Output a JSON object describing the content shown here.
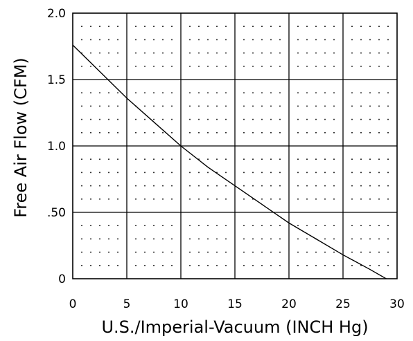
{
  "chart_data": {
    "type": "line",
    "title": "",
    "xlabel": "U.S./Imperial-Vacuum (INCH Hg)",
    "ylabel": "Free Air Flow (CFM)",
    "xlim": [
      0,
      30
    ],
    "ylim": [
      0,
      2.0
    ],
    "x_ticks": [
      0,
      5,
      10,
      15,
      20,
      25,
      30
    ],
    "x_tick_labels": [
      "0",
      "5",
      "10",
      "15",
      "20",
      "25",
      "30"
    ],
    "y_ticks": [
      0,
      0.5,
      1.0,
      1.5,
      2.0
    ],
    "y_tick_labels": [
      "0",
      ".50",
      "1.0",
      "1.5",
      "2.0"
    ],
    "grid": true,
    "minor_dot_grid": true,
    "series": [
      {
        "x": [
          0,
          2.5,
          5,
          7.5,
          10,
          12.5,
          15,
          17.5,
          20,
          22.5,
          25,
          27.5,
          29
        ],
        "y": [
          1.76,
          1.56,
          1.36,
          1.18,
          1.0,
          0.84,
          0.7,
          0.56,
          0.42,
          0.3,
          0.18,
          0.07,
          0.0
        ]
      }
    ]
  },
  "colors": {
    "line": "#000000",
    "grid": "#000000",
    "dots": "#000000",
    "background": "#ffffff"
  }
}
